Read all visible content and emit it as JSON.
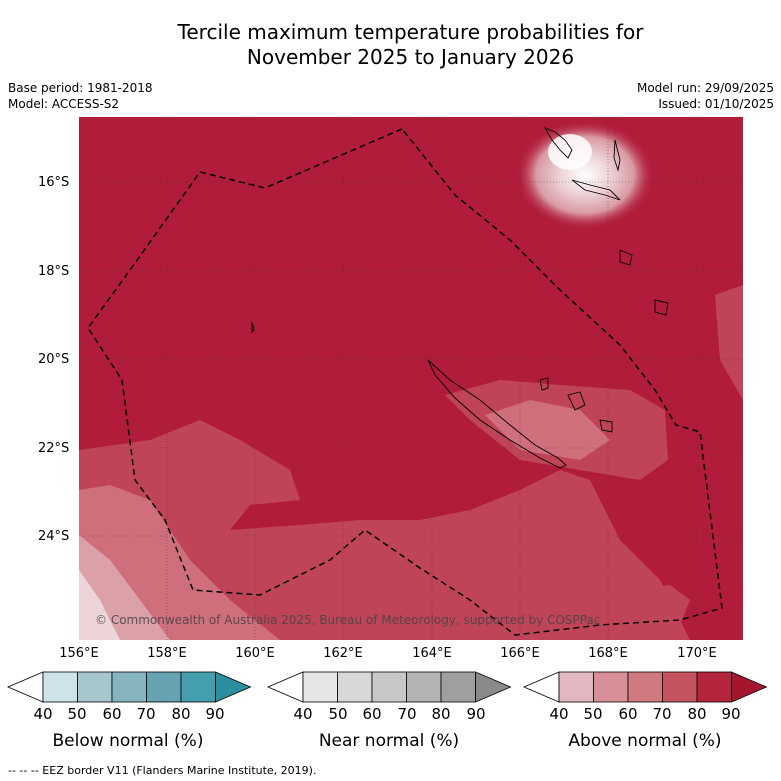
{
  "title_line1": "Tercile maximum temperature probabilities for",
  "title_line2": "November 2025 to January 2026",
  "base_period": "Base period: 1981-2018",
  "model": "Model: ACCESS-S2",
  "model_run": "Model run: 29/09/2025",
  "issued": "Issued: 01/10/2025",
  "copyright": "© Commonwealth of Australia 2025, Bureau of Meteorology, supported by COSPPac",
  "footer": "--  --  -- EEZ border V11 (Flanders Marine Institute, 2019).",
  "lat_labels": [
    "16°S",
    "18°S",
    "20°S",
    "22°S",
    "24°S"
  ],
  "lon_labels": [
    "156°E",
    "158°E",
    "160°E",
    "162°E",
    "164°E",
    "166°E",
    "168°E",
    "170°E"
  ],
  "colorbars": [
    {
      "name": "Below normal (%)",
      "ticks": [
        "40",
        "50",
        "60",
        "70",
        "80",
        "90"
      ],
      "colors": [
        "#cde3e8",
        "#a6c7cd",
        "#87b5bf",
        "#66a3b0",
        "#449ead",
        "#2c8f9f"
      ]
    },
    {
      "name": "Near normal (%)",
      "ticks": [
        "40",
        "50",
        "60",
        "70",
        "80",
        "90"
      ],
      "colors": [
        "#e6e6e6",
        "#d8d8d8",
        "#c8c8c8",
        "#b4b4b4",
        "#9f9f9f",
        "#8a8a8a"
      ]
    },
    {
      "name": "Above normal (%)",
      "ticks": [
        "40",
        "50",
        "60",
        "70",
        "80",
        "90"
      ],
      "colors": [
        "#e2b7bf",
        "#d98f97",
        "#cf7a80",
        "#c3545f",
        "#b3253d",
        "#a5162e"
      ]
    }
  ],
  "map_colors": {
    "base": "#b11c3a",
    "level70": "#c04458",
    "level60": "#cf6f7c",
    "level50": "#dba0a8",
    "level40": "#edd4d8"
  }
}
